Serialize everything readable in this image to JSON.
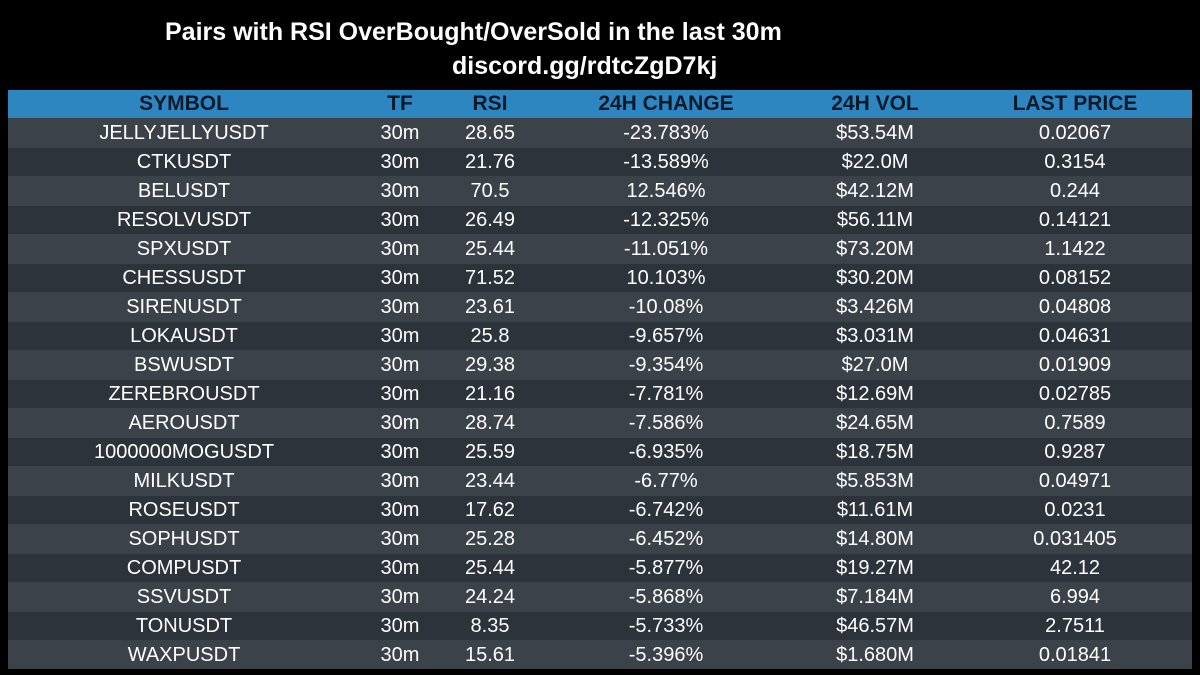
{
  "header": {
    "title": "Pairs with RSI OverBought/OverSold in the last 30m",
    "subtitle": "discord.gg/rdtcZgD7kj"
  },
  "table": {
    "columns": [
      "SYMBOL",
      "TF",
      "RSI",
      "24H CHANGE",
      "24H VOL",
      "LAST PRICE"
    ],
    "rows": [
      [
        "JELLYJELLYUSDT",
        "30m",
        "28.65",
        "-23.783%",
        "$53.54M",
        "0.02067"
      ],
      [
        "CTKUSDT",
        "30m",
        "21.76",
        "-13.589%",
        "$22.0M",
        "0.3154"
      ],
      [
        "BELUSDT",
        "30m",
        "70.5",
        "12.546%",
        "$42.12M",
        "0.244"
      ],
      [
        "RESOLVUSDT",
        "30m",
        "26.49",
        "-12.325%",
        "$56.11M",
        "0.14121"
      ],
      [
        "SPXUSDT",
        "30m",
        "25.44",
        "-11.051%",
        "$73.20M",
        "1.1422"
      ],
      [
        "CHESSUSDT",
        "30m",
        "71.52",
        "10.103%",
        "$30.20M",
        "0.08152"
      ],
      [
        "SIRENUSDT",
        "30m",
        "23.61",
        "-10.08%",
        "$3.426M",
        "0.04808"
      ],
      [
        "LOKAUSDT",
        "30m",
        "25.8",
        "-9.657%",
        "$3.031M",
        "0.04631"
      ],
      [
        "BSWUSDT",
        "30m",
        "29.38",
        "-9.354%",
        "$27.0M",
        "0.01909"
      ],
      [
        "ZEREBROUSDT",
        "30m",
        "21.16",
        "-7.781%",
        "$12.69M",
        "0.02785"
      ],
      [
        "AEROUSDT",
        "30m",
        "28.74",
        "-7.586%",
        "$24.65M",
        "0.7589"
      ],
      [
        "1000000MOGUSDT",
        "30m",
        "25.59",
        "-6.935%",
        "$18.75M",
        "0.9287"
      ],
      [
        "MILKUSDT",
        "30m",
        "23.44",
        "-6.77%",
        "$5.853M",
        "0.04971"
      ],
      [
        "ROSEUSDT",
        "30m",
        "17.62",
        "-6.742%",
        "$11.61M",
        "0.0231"
      ],
      [
        "SOPHUSDT",
        "30m",
        "25.28",
        "-6.452%",
        "$14.80M",
        "0.031405"
      ],
      [
        "COMPUSDT",
        "30m",
        "25.44",
        "-5.877%",
        "$19.27M",
        "42.12"
      ],
      [
        "SSVUSDT",
        "30m",
        "24.24",
        "-5.868%",
        "$7.184M",
        "6.994"
      ],
      [
        "TONUSDT",
        "30m",
        "8.35",
        "-5.733%",
        "$46.57M",
        "2.7511"
      ],
      [
        "WAXPUSDT",
        "30m",
        "15.61",
        "-5.396%",
        "$1.680M",
        "0.01841"
      ]
    ]
  },
  "colors": {
    "background": "#000000",
    "header_bar": "#2e86c1",
    "header_text": "#0b1a2b",
    "row_dark": "#2c333a",
    "row_light": "#3b4249",
    "text": "#ffffff"
  }
}
